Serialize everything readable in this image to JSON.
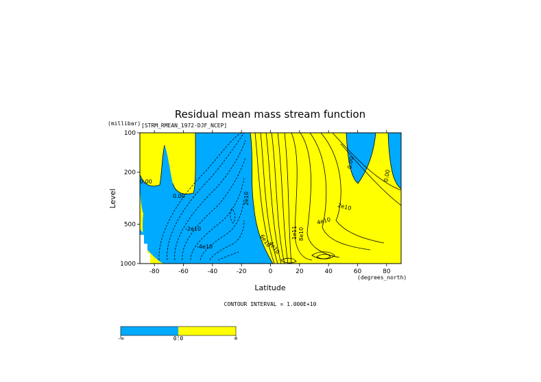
{
  "chart_data": {
    "type": "contour",
    "title": "Residual mean mass stream function",
    "dataset_label": "[STRM_RMEAN_1972-DJF_NCEP]",
    "xlabel": "Latitude",
    "xunits": "(degrees_north)",
    "ylabel": "Level",
    "yunits": "(millibar)",
    "xlim": [
      -90,
      90
    ],
    "ylim": [
      1000,
      100
    ],
    "y_scale": "log (pressure)",
    "x_ticks": [
      -80,
      -60,
      -40,
      -20,
      0,
      20,
      40,
      60,
      80
    ],
    "x_tick_labels": [
      "-80",
      "-60",
      "-40",
      "-20",
      "0",
      "20",
      "40",
      "60",
      "80"
    ],
    "y_ticks": [
      100,
      200,
      500,
      1000
    ],
    "y_tick_labels": [
      "100",
      "200",
      "500",
      "1000"
    ],
    "contour_interval_text": "CONTOUR INTERVAL = 1.000E+10",
    "contour_labels": [
      "0.00",
      "0.00",
      "0.00",
      "0.00",
      "2e10",
      "4e10",
      "2e10",
      "4e10",
      "-2e10",
      "-4e10",
      "1e11",
      "8e10",
      "6e10"
    ],
    "colors": {
      "negative": "#00aaff",
      "positive": "#ffff00"
    },
    "colorbar": {
      "segments": [
        "#00aaff",
        "#ffff00"
      ],
      "labels": [
        "-∞",
        "0.0",
        "∞"
      ]
    }
  }
}
